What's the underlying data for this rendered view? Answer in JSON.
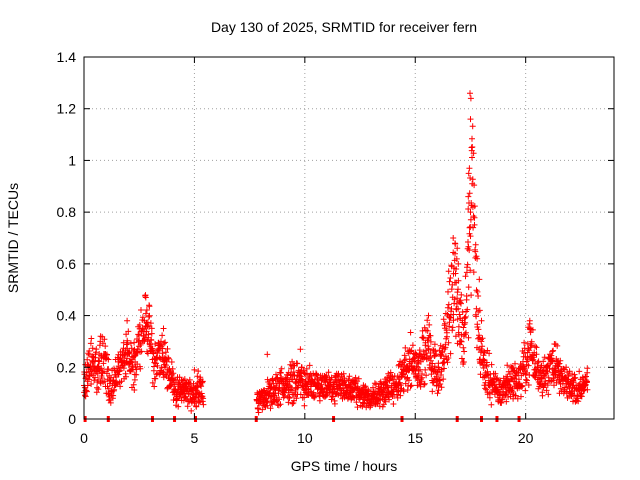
{
  "chart_data": {
    "type": "scatter",
    "title": "Day 130 of 2025, SRMTID for receiver fern",
    "xlabel": "GPS time / hours",
    "ylabel": "SRMTID / TECUs",
    "xlim": [
      0,
      24
    ],
    "ylim": [
      0,
      1.4
    ],
    "xticks": [
      0,
      5,
      10,
      15,
      20
    ],
    "xtick_labels": [
      "0",
      "5",
      "10",
      "15",
      "20"
    ],
    "yticks": [
      0,
      0.2,
      0.4,
      0.6,
      0.8,
      1.0,
      1.2,
      1.4
    ],
    "ytick_labels": [
      "0",
      "0.2",
      "0.4",
      "0.6",
      "0.8",
      "1",
      "1.2",
      "1.4"
    ],
    "grid": true,
    "marker": "plus",
    "color": "#ff0000",
    "envelope": [
      [
        0.0,
        0.12,
        0.05
      ],
      [
        0.2,
        0.2,
        0.08
      ],
      [
        0.4,
        0.22,
        0.08
      ],
      [
        0.6,
        0.18,
        0.07
      ],
      [
        0.8,
        0.24,
        0.09
      ],
      [
        1.0,
        0.2,
        0.08
      ],
      [
        1.2,
        0.12,
        0.05
      ],
      [
        1.4,
        0.15,
        0.06
      ],
      [
        1.6,
        0.2,
        0.07
      ],
      [
        1.8,
        0.22,
        0.07
      ],
      [
        2.0,
        0.25,
        0.08
      ],
      [
        2.2,
        0.2,
        0.07
      ],
      [
        2.4,
        0.25,
        0.09
      ],
      [
        2.6,
        0.35,
        0.1
      ],
      [
        2.8,
        0.38,
        0.1
      ],
      [
        3.0,
        0.3,
        0.09
      ],
      [
        3.2,
        0.2,
        0.08
      ],
      [
        3.4,
        0.25,
        0.08
      ],
      [
        3.6,
        0.22,
        0.08
      ],
      [
        3.8,
        0.2,
        0.07
      ],
      [
        4.0,
        0.15,
        0.06
      ],
      [
        4.2,
        0.1,
        0.05
      ],
      [
        4.4,
        0.12,
        0.05
      ],
      [
        4.6,
        0.1,
        0.05
      ],
      [
        4.8,
        0.1,
        0.05
      ],
      [
        5.0,
        0.1,
        0.05
      ],
      [
        5.2,
        0.12,
        0.06
      ],
      [
        5.4,
        0.09,
        0.04
      ],
      [
        7.8,
        0.08,
        0.04
      ],
      [
        8.0,
        0.07,
        0.04
      ],
      [
        8.2,
        0.09,
        0.04
      ],
      [
        8.4,
        0.1,
        0.05
      ],
      [
        8.6,
        0.1,
        0.05
      ],
      [
        8.8,
        0.12,
        0.06
      ],
      [
        9.0,
        0.14,
        0.06
      ],
      [
        9.2,
        0.12,
        0.06
      ],
      [
        9.4,
        0.15,
        0.07
      ],
      [
        9.6,
        0.14,
        0.06
      ],
      [
        9.8,
        0.16,
        0.07
      ],
      [
        10.0,
        0.12,
        0.06
      ],
      [
        10.2,
        0.14,
        0.06
      ],
      [
        10.4,
        0.12,
        0.05
      ],
      [
        10.6,
        0.12,
        0.05
      ],
      [
        10.8,
        0.11,
        0.05
      ],
      [
        11.0,
        0.12,
        0.05
      ],
      [
        11.2,
        0.12,
        0.05
      ],
      [
        11.4,
        0.11,
        0.05
      ],
      [
        11.6,
        0.12,
        0.05
      ],
      [
        11.8,
        0.13,
        0.06
      ],
      [
        12.0,
        0.11,
        0.05
      ],
      [
        12.2,
        0.12,
        0.05
      ],
      [
        12.4,
        0.1,
        0.05
      ],
      [
        12.6,
        0.1,
        0.05
      ],
      [
        12.8,
        0.09,
        0.04
      ],
      [
        13.0,
        0.08,
        0.04
      ],
      [
        13.2,
        0.09,
        0.04
      ],
      [
        13.4,
        0.1,
        0.05
      ],
      [
        13.6,
        0.11,
        0.05
      ],
      [
        13.8,
        0.12,
        0.05
      ],
      [
        14.0,
        0.12,
        0.06
      ],
      [
        14.2,
        0.13,
        0.06
      ],
      [
        14.4,
        0.16,
        0.07
      ],
      [
        14.6,
        0.2,
        0.08
      ],
      [
        14.8,
        0.24,
        0.09
      ],
      [
        15.0,
        0.2,
        0.08
      ],
      [
        15.2,
        0.22,
        0.09
      ],
      [
        15.4,
        0.25,
        0.09
      ],
      [
        15.6,
        0.28,
        0.1
      ],
      [
        15.8,
        0.2,
        0.09
      ],
      [
        16.0,
        0.18,
        0.08
      ],
      [
        16.2,
        0.22,
        0.09
      ],
      [
        16.4,
        0.3,
        0.12
      ],
      [
        16.6,
        0.45,
        0.15
      ],
      [
        16.8,
        0.55,
        0.15
      ],
      [
        17.0,
        0.4,
        0.14
      ],
      [
        17.2,
        0.3,
        0.12
      ],
      [
        17.4,
        0.6,
        0.25
      ],
      [
        17.6,
        0.95,
        0.3
      ],
      [
        17.8,
        0.4,
        0.15
      ],
      [
        18.0,
        0.25,
        0.1
      ],
      [
        18.2,
        0.18,
        0.08
      ],
      [
        18.4,
        0.15,
        0.07
      ],
      [
        18.6,
        0.12,
        0.06
      ],
      [
        18.8,
        0.11,
        0.05
      ],
      [
        19.0,
        0.12,
        0.05
      ],
      [
        19.2,
        0.14,
        0.06
      ],
      [
        19.4,
        0.15,
        0.06
      ],
      [
        19.6,
        0.14,
        0.06
      ],
      [
        19.8,
        0.16,
        0.07
      ],
      [
        20.0,
        0.22,
        0.09
      ],
      [
        20.2,
        0.28,
        0.1
      ],
      [
        20.4,
        0.22,
        0.08
      ],
      [
        20.6,
        0.18,
        0.07
      ],
      [
        20.8,
        0.17,
        0.07
      ],
      [
        21.0,
        0.17,
        0.07
      ],
      [
        21.2,
        0.22,
        0.08
      ],
      [
        21.4,
        0.2,
        0.08
      ],
      [
        21.6,
        0.15,
        0.06
      ],
      [
        21.8,
        0.14,
        0.06
      ],
      [
        22.0,
        0.13,
        0.05
      ],
      [
        22.2,
        0.12,
        0.05
      ],
      [
        22.4,
        0.12,
        0.05
      ],
      [
        22.6,
        0.13,
        0.05
      ],
      [
        22.8,
        0.14,
        0.05
      ]
    ],
    "spikes": [
      [
        17.48,
        1.26
      ],
      [
        17.52,
        1.24
      ],
      [
        17.5,
        1.16
      ],
      [
        17.55,
        1.05
      ],
      [
        17.45,
        0.97
      ],
      [
        17.42,
        0.95
      ],
      [
        17.58,
        0.91
      ],
      [
        17.4,
        0.86
      ],
      [
        17.5,
        0.8
      ],
      [
        17.46,
        0.74
      ],
      [
        16.72,
        0.7
      ],
      [
        16.8,
        0.68
      ],
      [
        16.9,
        0.66
      ],
      [
        16.95,
        0.6
      ],
      [
        17.8,
        0.62
      ],
      [
        17.9,
        0.54
      ],
      [
        16.85,
        0.58
      ],
      [
        18.0,
        0.38
      ],
      [
        2.8,
        0.47
      ],
      [
        2.95,
        0.44
      ],
      [
        3.6,
        0.35
      ],
      [
        1.95,
        0.38
      ],
      [
        0.75,
        0.32
      ],
      [
        15.6,
        0.4
      ],
      [
        9.8,
        0.27
      ],
      [
        20.2,
        0.35
      ],
      [
        21.3,
        0.29
      ],
      [
        8.3,
        0.25
      ],
      [
        5.0,
        0.19
      ]
    ],
    "rug_x": [
      0.05,
      1.1,
      3.1,
      4.1,
      5.05,
      7.8,
      11.3,
      14.4,
      16.9,
      18.0,
      18.7,
      19.7
    ],
    "gap_hours": [
      5.5,
      7.75
    ]
  }
}
